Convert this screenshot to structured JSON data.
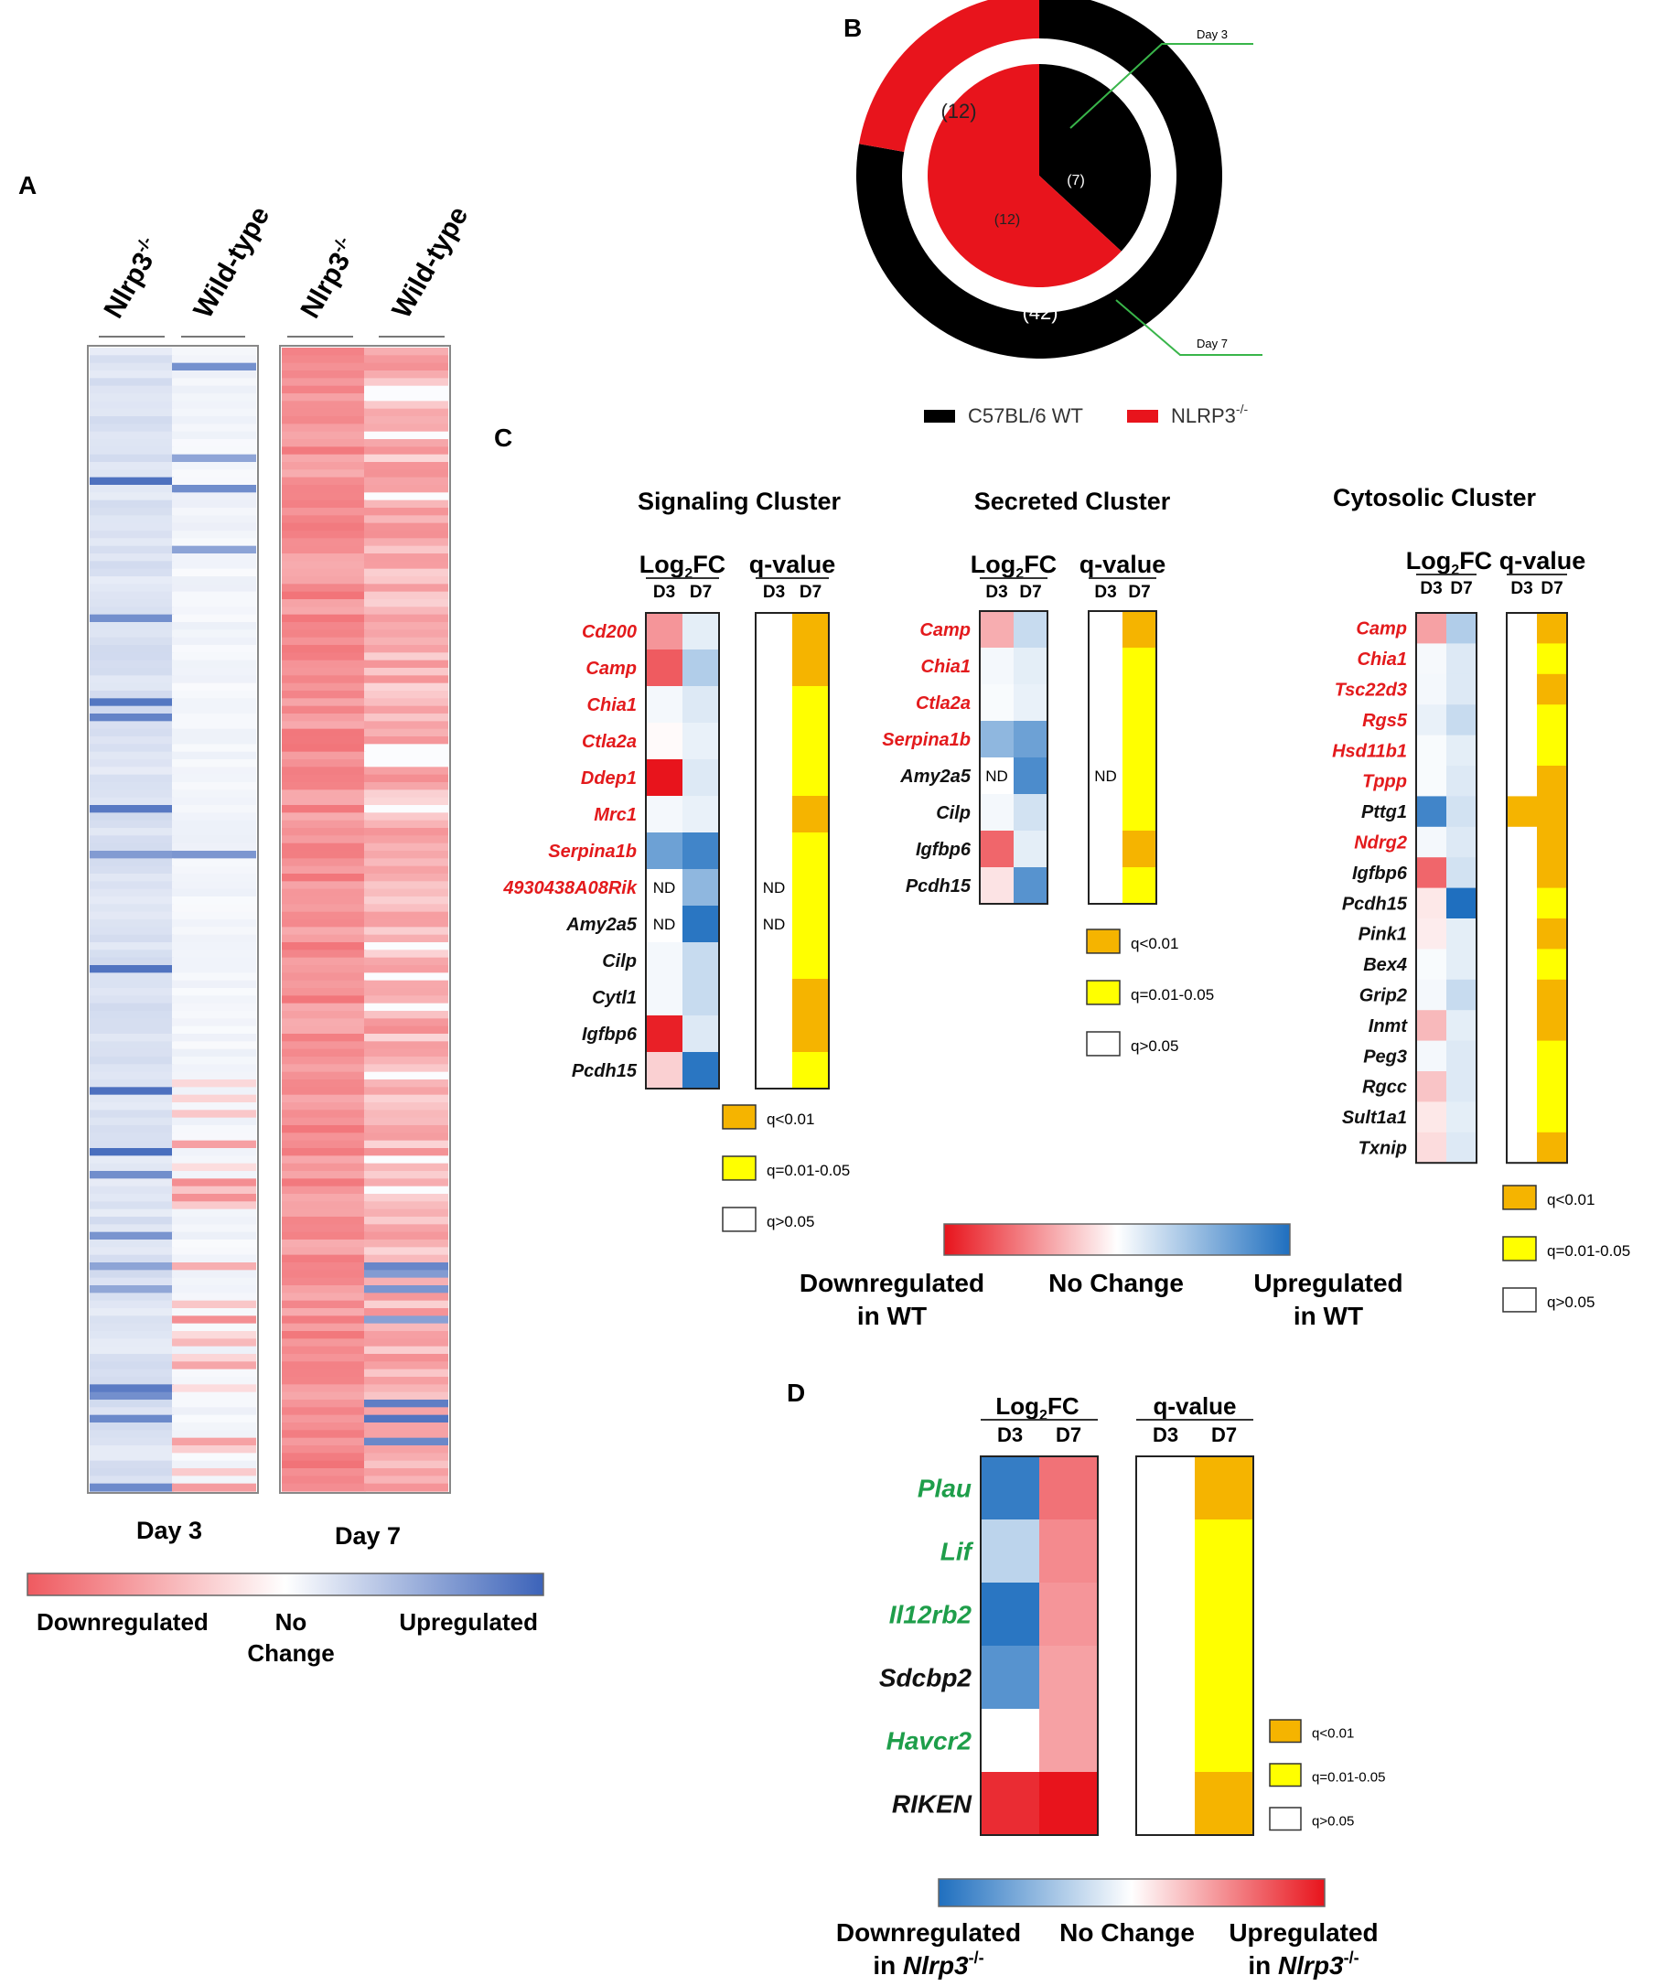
{
  "panel_letters": {
    "a": "A",
    "b": "B",
    "c": "C",
    "d": "D"
  },
  "colors": {
    "red": "#e8141c",
    "blue": "#1f6fbf",
    "orange": "#f5b400",
    "yellow": "#ffff00",
    "gene_red": "#e31a1c",
    "gene_green": "#1e9e4a",
    "black": "#111111",
    "green_line": "#39b54a"
  },
  "chart_data": [
    {
      "id": "A",
      "type": "heatmap",
      "title": "",
      "columns": [
        "Nlrp3-/-",
        "Wild-type",
        "Nlrp3-/-",
        "Wild-type"
      ],
      "groups": [
        "Day 3",
        "Day 7"
      ],
      "n_rows": 150,
      "note": "log2 fold-change per gene; negative = downregulated (red), positive = upregulated (blue)",
      "legend": {
        "low": "Downregulated",
        "mid": "No Change",
        "high": "Upregulated"
      }
    },
    {
      "id": "B",
      "type": "pie",
      "series": [
        {
          "name": "Day 7",
          "values": [
            {
              "label": "C57BL/6 WT",
              "value": 42
            },
            {
              "label": "NLRP3-/-",
              "value": 12
            }
          ]
        },
        {
          "name": "Day 3",
          "values": [
            {
              "label": "C57BL/6 WT",
              "value": 7
            },
            {
              "label": "NLRP3-/-",
              "value": 12
            }
          ]
        }
      ],
      "legend": [
        "C57BL/6 WT",
        "NLRP3-/-"
      ]
    },
    {
      "id": "C-signaling",
      "type": "heatmap",
      "title": "Signaling Cluster",
      "columns": [
        "D3",
        "D7"
      ],
      "genes": [
        {
          "name": "Cd200",
          "color": "red",
          "d3": -0.45,
          "d7": 0.12,
          "q": "orange"
        },
        {
          "name": "Camp",
          "color": "red",
          "d3": -0.7,
          "d7": 0.35,
          "q": "orange"
        },
        {
          "name": "Chia1",
          "color": "red",
          "d3": 0.05,
          "d7": 0.15,
          "q": "yellow"
        },
        {
          "name": "Ctla2a",
          "color": "red",
          "d3": -0.02,
          "d7": 0.1,
          "q": "yellow"
        },
        {
          "name": "Ddep1",
          "color": "red",
          "d3": -1,
          "d7": 0.15,
          "q": "yellow"
        },
        {
          "name": "Mrc1",
          "color": "red",
          "d3": 0.05,
          "d7": 0.1,
          "q": "orange"
        },
        {
          "name": "Serpina1b",
          "color": "red",
          "d3": 0.65,
          "d7": 0.85,
          "q": "yellow"
        },
        {
          "name": "4930438A08Rik",
          "color": "red",
          "d3": "ND",
          "d7": 0.5,
          "q": "yellow",
          "q3": "ND"
        },
        {
          "name": "Amy2a5",
          "color": "black",
          "d3": "ND",
          "d7": 0.95,
          "q": "yellow",
          "q3": "ND"
        },
        {
          "name": "Cilp",
          "color": "black",
          "d3": 0.05,
          "d7": 0.25,
          "q": "yellow"
        },
        {
          "name": "Cytl1",
          "color": "black",
          "d3": 0.05,
          "d7": 0.25,
          "q": "orange"
        },
        {
          "name": "Igfbp6",
          "color": "black",
          "d3": -0.95,
          "d7": 0.15,
          "q": "orange"
        },
        {
          "name": "Pcdh15",
          "color": "black",
          "d3": -0.2,
          "d7": 0.95,
          "q": "yellow"
        }
      ]
    },
    {
      "id": "C-secreted",
      "type": "heatmap",
      "title": "Secreted Cluster",
      "columns": [
        "D3",
        "D7"
      ],
      "genes": [
        {
          "name": "Camp",
          "color": "red",
          "d3": -0.35,
          "d7": 0.25,
          "q": "orange"
        },
        {
          "name": "Chia1",
          "color": "red",
          "d3": 0.05,
          "d7": 0.12,
          "q": "yellow"
        },
        {
          "name": "Ctla2a",
          "color": "red",
          "d3": 0.03,
          "d7": 0.1,
          "q": "yellow"
        },
        {
          "name": "Serpina1b",
          "color": "red",
          "d3": 0.5,
          "d7": 0.65,
          "q": "yellow"
        },
        {
          "name": "Amy2a5",
          "color": "black",
          "d3": "ND",
          "d7": 0.8,
          "q": "yellow",
          "q3": "ND"
        },
        {
          "name": "Cilp",
          "color": "black",
          "d3": 0.05,
          "d7": 0.2,
          "q": "yellow"
        },
        {
          "name": "Igfbp6",
          "color": "black",
          "d3": -0.65,
          "d7": 0.12,
          "q": "orange"
        },
        {
          "name": "Pcdh15",
          "color": "black",
          "d3": -0.12,
          "d7": 0.75,
          "q": "yellow"
        }
      ]
    },
    {
      "id": "C-cytosolic",
      "type": "heatmap",
      "title": "Cytosolic Cluster",
      "columns": [
        "D3",
        "D7"
      ],
      "genes": [
        {
          "name": "Camp",
          "color": "red",
          "d3": -0.4,
          "d7": 0.35,
          "q": "orange"
        },
        {
          "name": "Chia1",
          "color": "red",
          "d3": 0.04,
          "d7": 0.15,
          "q": "yellow"
        },
        {
          "name": "Tsc22d3",
          "color": "red",
          "d3": 0.05,
          "d7": 0.15,
          "q": "orange"
        },
        {
          "name": "Rgs5",
          "color": "red",
          "d3": 0.1,
          "d7": 0.25,
          "q": "yellow"
        },
        {
          "name": "Hsd11b1",
          "color": "red",
          "d3": 0.03,
          "d7": 0.12,
          "q": "yellow"
        },
        {
          "name": "Tppp",
          "color": "red",
          "d3": 0.03,
          "d7": 0.15,
          "q": "orange"
        },
        {
          "name": "Pttg1",
          "color": "black",
          "d3": 0.85,
          "d7": 0.2,
          "q": "orange",
          "q3": "orange"
        },
        {
          "name": "Ndrg2",
          "color": "red",
          "d3": 0.05,
          "d7": 0.15,
          "q": "orange"
        },
        {
          "name": "Igfbp6",
          "color": "black",
          "d3": -0.65,
          "d7": 0.2,
          "q": "orange"
        },
        {
          "name": "Pcdh15",
          "color": "black",
          "d3": -0.1,
          "d7": 1,
          "q": "yellow"
        },
        {
          "name": "Pink1",
          "color": "black",
          "d3": -0.08,
          "d7": 0.12,
          "q": "orange"
        },
        {
          "name": "Bex4",
          "color": "black",
          "d3": 0.03,
          "d7": 0.12,
          "q": "yellow"
        },
        {
          "name": "Grip2",
          "color": "black",
          "d3": 0.05,
          "d7": 0.25,
          "q": "orange"
        },
        {
          "name": "Inmt",
          "color": "black",
          "d3": -0.3,
          "d7": 0.12,
          "q": "orange"
        },
        {
          "name": "Peg3",
          "color": "black",
          "d3": 0.05,
          "d7": 0.15,
          "q": "yellow"
        },
        {
          "name": "Rgcc",
          "color": "black",
          "d3": -0.25,
          "d7": 0.15,
          "q": "yellow"
        },
        {
          "name": "Sult1a1",
          "color": "black",
          "d3": -0.1,
          "d7": 0.12,
          "q": "yellow"
        },
        {
          "name": "Txnip",
          "color": "black",
          "d3": -0.15,
          "d7": 0.15,
          "q": "orange"
        }
      ]
    },
    {
      "id": "D",
      "type": "heatmap",
      "title": "",
      "columns": [
        "D3",
        "D7"
      ],
      "genes": [
        {
          "name": "Plau",
          "color": "green",
          "d3": -0.9,
          "d7": 0.6,
          "q": "orange"
        },
        {
          "name": "Lif",
          "color": "green",
          "d3": -0.3,
          "d7": 0.5,
          "q": "yellow"
        },
        {
          "name": "Il12rb2",
          "color": "green",
          "d3": -0.95,
          "d7": 0.45,
          "q": "yellow"
        },
        {
          "name": "Sdcbp2",
          "color": "black",
          "d3": -0.75,
          "d7": 0.4,
          "q": "yellow"
        },
        {
          "name": "Havcr2",
          "color": "green",
          "d3": 0,
          "d7": 0.4,
          "q": "yellow"
        },
        {
          "name": "RIKEN",
          "color": "black",
          "d3": 0.9,
          "d7": 1,
          "q": "orange"
        }
      ]
    }
  ],
  "panelA": {
    "col1": "Nlrp3",
    "col2": "Wild-type",
    "col3": "Nlrp3",
    "col4": "Wild-type",
    "sup": "-/-",
    "day3": "Day 3",
    "day7": "Day 7",
    "legend_low": "Downregulated",
    "legend_mid1": "No",
    "legend_mid2": "Change",
    "legend_high": "Upregulated"
  },
  "panelB": {
    "day3_label": "Day 3",
    "day7_label": "Day 7",
    "outer_wt": "(42)",
    "outer_ko": "(12)",
    "inner_wt": "(7)",
    "inner_ko": "(12)",
    "legend_wt": "C57BL/6 WT",
    "legend_ko": "NLRP3",
    "legend_sup": "-/-"
  },
  "panelC": {
    "signaling_title": "Signaling Cluster",
    "secreted_title": "Secreted Cluster",
    "cytosolic_title": "Cytosolic Cluster",
    "log_label": "Log",
    "log_sub": "2",
    "log_tail": "FC",
    "q_label": "q-value",
    "d3": "D3",
    "d7": "D7",
    "nd": "ND",
    "q_lt": "q<0.01",
    "q_mid": "q=0.01-0.05",
    "q_gt": "q>0.05",
    "scale_low1": "Downregulated",
    "scale_low2": "in WT",
    "scale_mid": "No Change",
    "scale_high1": "Upregulated",
    "scale_high2": "in WT"
  },
  "panelD": {
    "log_label": "Log",
    "log_sub": "2",
    "log_tail": "FC",
    "q_label": "q-value",
    "d3": "D3",
    "d7": "D7",
    "q_lt": "q<0.01",
    "q_mid": "q=0.01-0.05",
    "q_gt": "q>0.05",
    "scale_low1": "Downregulated",
    "scale_low2": "in",
    "scale_low3": "Nlrp3",
    "scale_sup": "-/-",
    "scale_mid": "No Change",
    "scale_high1": "Upregulated",
    "scale_high2": "in",
    "scale_high3": "Nlrp3"
  }
}
